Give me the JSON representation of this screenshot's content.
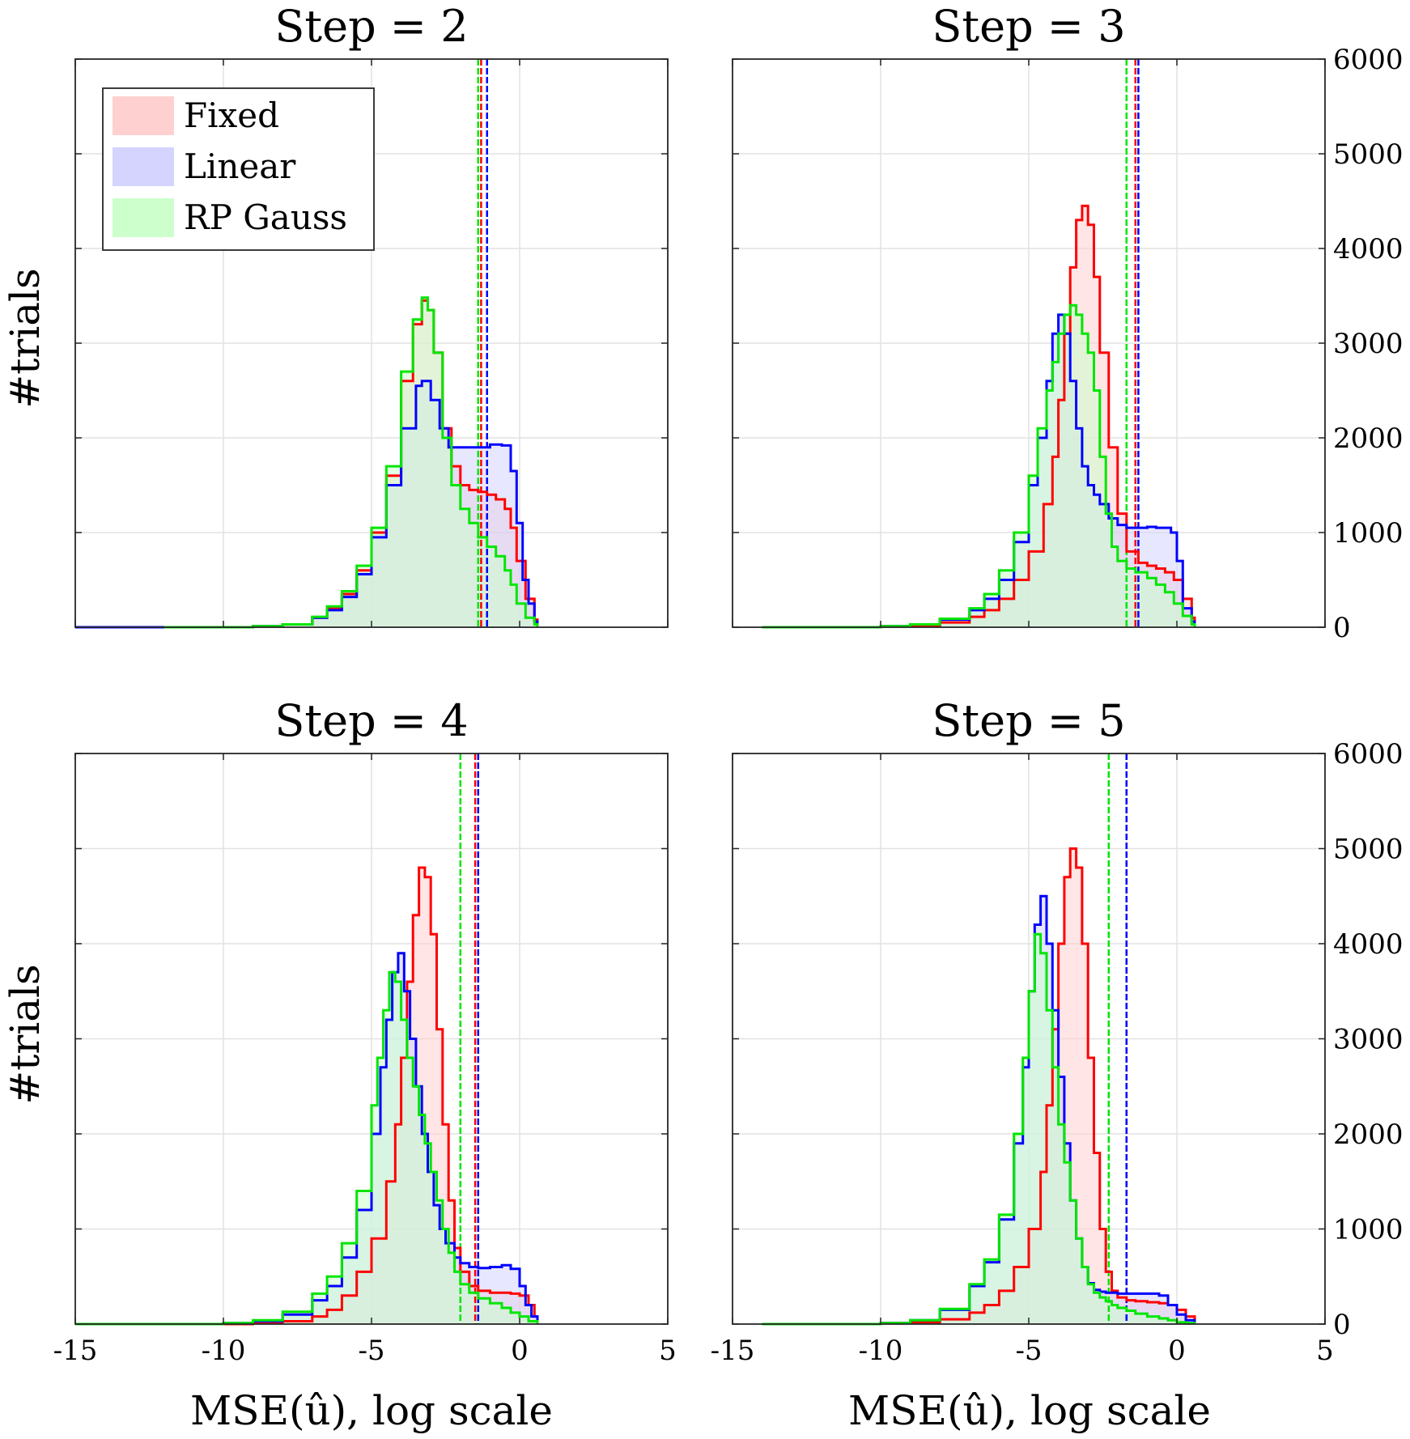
{
  "figure": {
    "ylabel": "#trials",
    "xlabel": "MSE(û), log scale",
    "legend": [
      "Fixed",
      "Linear",
      "RP Gauss"
    ],
    "colors": {
      "Fixed": "#ff0000",
      "Linear": "#0000ff",
      "RP Gauss": "#00e600",
      "Fixed_fill": "#ffd0d0",
      "Linear_fill": "#d4d4ff",
      "RP Gauss_fill": "#ccffcc",
      "overlap_fill": "#cfd4cf",
      "grid": "#e2e2e2"
    }
  },
  "chart_data": [
    {
      "type": "histogram",
      "title": "Step = 2",
      "xlim": [
        -15,
        5
      ],
      "ylim": [
        0,
        6000
      ],
      "xticks": [
        "-15",
        "-10",
        "-5",
        "0",
        "5"
      ],
      "yticks": [
        "0",
        "1000",
        "2000",
        "3000",
        "4000",
        "5000",
        "6000"
      ],
      "show_xticks": false,
      "show_yticks": false,
      "legend_shown": true,
      "series": [
        {
          "name": "Fixed",
          "x": [
            -12,
            -10,
            -9,
            -8,
            -7,
            -6.5,
            -6,
            -5.5,
            -5,
            -4.5,
            -4,
            -3.6,
            -3.3,
            -3.1,
            -2.9,
            -2.6,
            -2.3,
            -2,
            -1.7,
            -1.4,
            -1.1,
            -0.8,
            -0.5,
            -0.3,
            -0.1,
            0.2,
            0.5,
            0.6
          ],
          "y": [
            0,
            0,
            10,
            30,
            100,
            200,
            350,
            600,
            1000,
            1600,
            2600,
            3200,
            3450,
            3350,
            2900,
            2100,
            1700,
            1500,
            1450,
            1430,
            1400,
            1350,
            1250,
            1050,
            700,
            300,
            80,
            0
          ],
          "mean": -1.3
        },
        {
          "name": "Linear",
          "x": [
            -15,
            -12,
            -10,
            -9,
            -8,
            -7,
            -6.5,
            -6,
            -5.5,
            -5,
            -4.5,
            -4,
            -3.5,
            -3.3,
            -3,
            -2.7,
            -2.4,
            -2,
            -1.5,
            -1,
            -0.6,
            -0.3,
            -0.1,
            0.1,
            0.3,
            0.5,
            0.6
          ],
          "y": [
            0,
            0,
            0,
            10,
            30,
            100,
            180,
            320,
            560,
            950,
            1500,
            2100,
            2550,
            2600,
            2400,
            2100,
            1900,
            1900,
            1900,
            1930,
            1920,
            1650,
            1100,
            500,
            250,
            60,
            0
          ],
          "mean": -1.1
        },
        {
          "name": "RP Gauss",
          "x": [
            -12,
            -10,
            -9,
            -8,
            -7,
            -6.5,
            -6,
            -5.5,
            -5,
            -4.5,
            -4,
            -3.6,
            -3.3,
            -3.1,
            -2.9,
            -2.6,
            -2.3,
            -2,
            -1.7,
            -1.4,
            -1.1,
            -0.8,
            -0.5,
            -0.3,
            -0.1,
            0.2,
            0.5,
            0.6
          ],
          "y": [
            0,
            0,
            10,
            30,
            110,
            220,
            380,
            650,
            1050,
            1700,
            2700,
            3250,
            3480,
            3350,
            2900,
            2000,
            1500,
            1250,
            1100,
            950,
            850,
            750,
            600,
            450,
            250,
            100,
            30,
            0
          ],
          "mean": -1.4
        }
      ]
    },
    {
      "type": "histogram",
      "title": "Step = 3",
      "xlim": [
        -15,
        5
      ],
      "ylim": [
        0,
        6000
      ],
      "xticks": [
        "-15",
        "-10",
        "-5",
        "0",
        "5"
      ],
      "yticks": [
        "0",
        "1000",
        "2000",
        "3000",
        "4000",
        "5000",
        "6000"
      ],
      "show_xticks": false,
      "show_yticks": true,
      "legend_shown": false,
      "series": [
        {
          "name": "Fixed",
          "x": [
            -14,
            -11,
            -10,
            -9,
            -8,
            -7,
            -6.5,
            -6,
            -5.5,
            -5,
            -4.5,
            -4.2,
            -4,
            -3.8,
            -3.6,
            -3.4,
            -3.2,
            -3,
            -2.8,
            -2.6,
            -2.3,
            -2,
            -1.7,
            -1.3,
            -1,
            -0.7,
            -0.4,
            -0.1,
            0.2,
            0.5,
            0.6
          ],
          "y": [
            0,
            0,
            10,
            20,
            50,
            110,
            180,
            300,
            500,
            800,
            1300,
            1800,
            2400,
            3100,
            3800,
            4300,
            4450,
            4250,
            3700,
            2900,
            1900,
            1200,
            800,
            680,
            650,
            620,
            580,
            500,
            300,
            100,
            0
          ],
          "mean": -1.4
        },
        {
          "name": "Linear",
          "x": [
            -14,
            -11,
            -10,
            -9,
            -8,
            -7,
            -6.5,
            -6,
            -5.5,
            -5,
            -4.7,
            -4.4,
            -4.2,
            -4,
            -3.8,
            -3.6,
            -3.4,
            -3.2,
            -3,
            -2.8,
            -2.6,
            -2.3,
            -2,
            -1.7,
            -1.3,
            -1,
            -0.7,
            -0.4,
            -0.2,
            0,
            0.2,
            0.5,
            0.6
          ],
          "y": [
            0,
            0,
            10,
            30,
            80,
            180,
            300,
            500,
            900,
            1500,
            2000,
            2600,
            3100,
            3300,
            3100,
            2600,
            2100,
            1700,
            1500,
            1400,
            1300,
            1150,
            1080,
            1050,
            1050,
            1060,
            1050,
            1050,
            1000,
            700,
            200,
            60,
            0
          ],
          "mean": -1.3
        },
        {
          "name": "RP Gauss",
          "x": [
            -14,
            -11,
            -10,
            -9,
            -8,
            -7,
            -6.5,
            -6,
            -5.5,
            -5,
            -4.7,
            -4.4,
            -4.2,
            -4,
            -3.8,
            -3.6,
            -3.4,
            -3.2,
            -3,
            -2.8,
            -2.6,
            -2.4,
            -2.2,
            -2,
            -1.7,
            -1.4,
            -1,
            -0.7,
            -0.4,
            -0.1,
            0.2,
            0.5,
            0.6
          ],
          "y": [
            0,
            0,
            10,
            30,
            90,
            200,
            350,
            600,
            1000,
            1600,
            2100,
            2500,
            2800,
            3100,
            3300,
            3400,
            3300,
            3100,
            2900,
            2500,
            1800,
            1200,
            850,
            700,
            620,
            580,
            520,
            450,
            370,
            250,
            120,
            30,
            0
          ],
          "mean": -1.7
        }
      ]
    },
    {
      "type": "histogram",
      "title": "Step = 4",
      "xlim": [
        -15,
        5
      ],
      "ylim": [
        0,
        6000
      ],
      "xticks": [
        "-15",
        "-10",
        "-5",
        "0",
        "5"
      ],
      "yticks": [
        "0",
        "1000",
        "2000",
        "3000",
        "4000",
        "5000",
        "6000"
      ],
      "show_xticks": true,
      "show_yticks": false,
      "legend_shown": false,
      "series": [
        {
          "name": "Fixed",
          "x": [
            -15,
            -12,
            -10,
            -9,
            -8,
            -7,
            -6.5,
            -6,
            -5.5,
            -5,
            -4.5,
            -4.2,
            -4,
            -3.8,
            -3.6,
            -3.4,
            -3.2,
            -3,
            -2.8,
            -2.6,
            -2.4,
            -2.2,
            -2,
            -1.7,
            -1.4,
            -1,
            -0.6,
            -0.3,
            0,
            0.3,
            0.5,
            0.6
          ],
          "y": [
            0,
            0,
            0,
            10,
            30,
            80,
            150,
            300,
            550,
            900,
            1500,
            2100,
            2800,
            3600,
            4300,
            4800,
            4700,
            4100,
            3100,
            2100,
            1300,
            800,
            550,
            400,
            350,
            330,
            330,
            320,
            300,
            200,
            80,
            0
          ],
          "mean": -1.5
        },
        {
          "name": "Linear",
          "x": [
            -15,
            -12,
            -10,
            -9,
            -8,
            -7,
            -6.5,
            -6,
            -5.5,
            -5,
            -4.7,
            -4.5,
            -4.3,
            -4.1,
            -3.9,
            -3.7,
            -3.5,
            -3.3,
            -3.1,
            -2.9,
            -2.7,
            -2.5,
            -2.2,
            -2,
            -1.7,
            -1.4,
            -1,
            -0.6,
            -0.3,
            0,
            0.2,
            0.4,
            0.6
          ],
          "y": [
            0,
            0,
            10,
            30,
            100,
            250,
            400,
            700,
            1200,
            2000,
            2700,
            3200,
            3700,
            3900,
            3500,
            3000,
            2500,
            2000,
            1600,
            1250,
            1000,
            850,
            700,
            640,
            600,
            590,
            600,
            620,
            580,
            400,
            200,
            80,
            0
          ],
          "mean": -1.4
        },
        {
          "name": "RP Gauss",
          "x": [
            -15,
            -12,
            -10,
            -9,
            -8,
            -7,
            -6.5,
            -6,
            -5.5,
            -5,
            -4.8,
            -4.6,
            -4.4,
            -4.2,
            -4,
            -3.8,
            -3.6,
            -3.4,
            -3.2,
            -3,
            -2.8,
            -2.6,
            -2.4,
            -2.2,
            -2,
            -1.7,
            -1.4,
            -1,
            -0.6,
            -0.3,
            0,
            0.3,
            0.6
          ],
          "y": [
            0,
            0,
            10,
            40,
            130,
            320,
            500,
            850,
            1400,
            2300,
            2800,
            3300,
            3700,
            3600,
            3200,
            2800,
            2500,
            2200,
            1900,
            1600,
            1300,
            1000,
            750,
            550,
            420,
            330,
            270,
            220,
            170,
            120,
            80,
            30,
            0
          ],
          "mean": -2.0
        }
      ]
    },
    {
      "type": "histogram",
      "title": "Step = 5",
      "xlim": [
        -15,
        5
      ],
      "ylim": [
        0,
        6000
      ],
      "xticks": [
        "-15",
        "-10",
        "-5",
        "0",
        "5"
      ],
      "yticks": [
        "0",
        "1000",
        "2000",
        "3000",
        "4000",
        "5000",
        "6000"
      ],
      "show_xticks": true,
      "show_yticks": true,
      "legend_shown": false,
      "series": [
        {
          "name": "Fixed",
          "x": [
            -14,
            -11,
            -10,
            -9,
            -8,
            -7,
            -6.5,
            -6,
            -5.5,
            -5,
            -4.6,
            -4.4,
            -4.2,
            -4,
            -3.8,
            -3.6,
            -3.4,
            -3.2,
            -3,
            -2.8,
            -2.6,
            -2.4,
            -2.2,
            -2,
            -1.7,
            -1.4,
            -1,
            -0.6,
            -0.3,
            0,
            0.3,
            0.6
          ],
          "y": [
            0,
            0,
            10,
            20,
            50,
            120,
            200,
            350,
            600,
            1000,
            1600,
            2300,
            3100,
            4000,
            4700,
            5000,
            4800,
            4000,
            2800,
            1800,
            1000,
            550,
            350,
            280,
            250,
            240,
            230,
            220,
            200,
            150,
            80,
            0
          ],
          "mean": -1.7
        },
        {
          "name": "Linear",
          "x": [
            -14,
            -11,
            -10,
            -9,
            -8,
            -7,
            -6.5,
            -6,
            -5.5,
            -5.2,
            -5,
            -4.8,
            -4.6,
            -4.4,
            -4.2,
            -4,
            -3.8,
            -3.6,
            -3.4,
            -3.2,
            -3,
            -2.8,
            -2.6,
            -2.4,
            -2,
            -1.7,
            -1.4,
            -1,
            -0.6,
            -0.3,
            0,
            0.3,
            0.6
          ],
          "y": [
            0,
            0,
            10,
            40,
            150,
            400,
            650,
            1100,
            1900,
            2700,
            3500,
            4200,
            4500,
            4000,
            3300,
            2600,
            1900,
            1300,
            900,
            600,
            430,
            360,
            340,
            330,
            320,
            320,
            320,
            320,
            300,
            200,
            100,
            40,
            0
          ],
          "mean": -1.7
        },
        {
          "name": "RP Gauss",
          "x": [
            -14,
            -11,
            -10,
            -9,
            -8,
            -7,
            -6.5,
            -6,
            -5.5,
            -5.2,
            -5,
            -4.8,
            -4.6,
            -4.4,
            -4.2,
            -4,
            -3.8,
            -3.6,
            -3.4,
            -3.2,
            -3,
            -2.8,
            -2.6,
            -2.4,
            -2.2,
            -2,
            -1.7,
            -1.4,
            -1,
            -0.6,
            -0.3,
            0,
            0.3,
            0.6
          ],
          "y": [
            0,
            0,
            10,
            40,
            160,
            420,
            680,
            1150,
            2000,
            2800,
            3500,
            4100,
            3900,
            3300,
            2700,
            2100,
            1700,
            1300,
            900,
            600,
            420,
            330,
            280,
            240,
            200,
            170,
            140,
            110,
            80,
            60,
            40,
            20,
            10,
            0
          ],
          "mean": -2.3
        }
      ]
    }
  ]
}
